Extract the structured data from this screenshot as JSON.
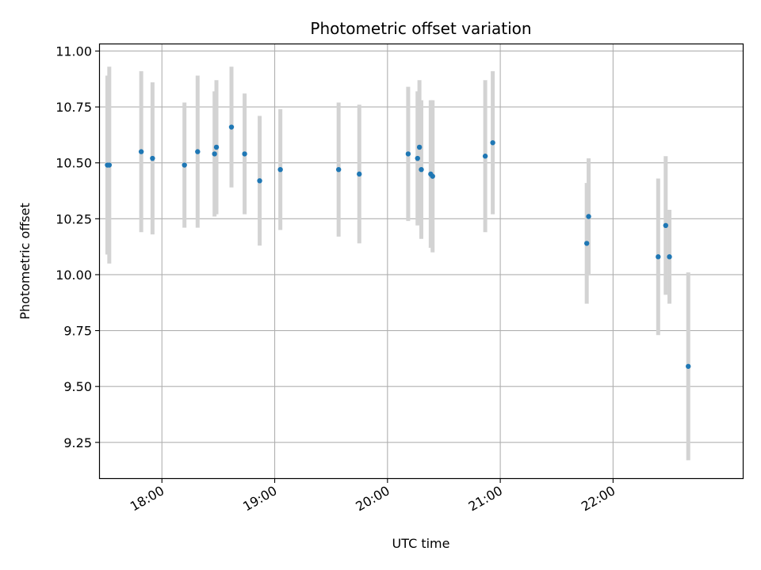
{
  "chart_data": {
    "type": "scatter",
    "title": "Photometric offset variation",
    "xlabel": "UTC time",
    "ylabel": "Photometric offset",
    "x_tick_labels": [
      "18:00",
      "19:00",
      "20:00",
      "21:00",
      "22:00"
    ],
    "y_tick_labels": [
      "9.25",
      "9.50",
      "9.75",
      "10.00",
      "10.25",
      "10.50",
      "10.75",
      "11.00"
    ],
    "xlim": [
      "17:27",
      "23:09"
    ],
    "ylim": [
      9.09,
      11.03
    ],
    "grid": true,
    "marker_color": "#1f77b4",
    "errorbar_color": "#d3d3d3",
    "points": [
      {
        "x": "17:31",
        "y": 10.49,
        "err": 0.4
      },
      {
        "x": "17:32",
        "y": 10.49,
        "err": 0.44
      },
      {
        "x": "17:49",
        "y": 10.55,
        "err": 0.36
      },
      {
        "x": "17:55",
        "y": 10.52,
        "err": 0.34
      },
      {
        "x": "18:12",
        "y": 10.49,
        "err": 0.28
      },
      {
        "x": "18:19",
        "y": 10.55,
        "err": 0.34
      },
      {
        "x": "18:28",
        "y": 10.54,
        "err": 0.28
      },
      {
        "x": "18:29",
        "y": 10.57,
        "err": 0.3
      },
      {
        "x": "18:37",
        "y": 10.66,
        "err": 0.27
      },
      {
        "x": "18:44",
        "y": 10.54,
        "err": 0.27
      },
      {
        "x": "18:52",
        "y": 10.42,
        "err": 0.29
      },
      {
        "x": "19:03",
        "y": 10.47,
        "err": 0.27
      },
      {
        "x": "19:34",
        "y": 10.47,
        "err": 0.3
      },
      {
        "x": "19:45",
        "y": 10.45,
        "err": 0.31
      },
      {
        "x": "20:11",
        "y": 10.54,
        "err": 0.3
      },
      {
        "x": "20:16",
        "y": 10.52,
        "err": 0.3
      },
      {
        "x": "20:17",
        "y": 10.57,
        "err": 0.3
      },
      {
        "x": "20:18",
        "y": 10.47,
        "err": 0.31
      },
      {
        "x": "20:23",
        "y": 10.45,
        "err": 0.33
      },
      {
        "x": "20:24",
        "y": 10.44,
        "err": 0.34
      },
      {
        "x": "20:52",
        "y": 10.53,
        "err": 0.34
      },
      {
        "x": "20:56",
        "y": 10.59,
        "err": 0.32
      },
      {
        "x": "21:46",
        "y": 10.14,
        "err": 0.27
      },
      {
        "x": "21:47",
        "y": 10.26,
        "err": 0.26
      },
      {
        "x": "22:24",
        "y": 10.08,
        "err": 0.35
      },
      {
        "x": "22:28",
        "y": 10.22,
        "err": 0.31
      },
      {
        "x": "22:30",
        "y": 10.08,
        "err": 0.21
      },
      {
        "x": "22:40",
        "y": 9.59,
        "err": 0.42
      }
    ]
  }
}
